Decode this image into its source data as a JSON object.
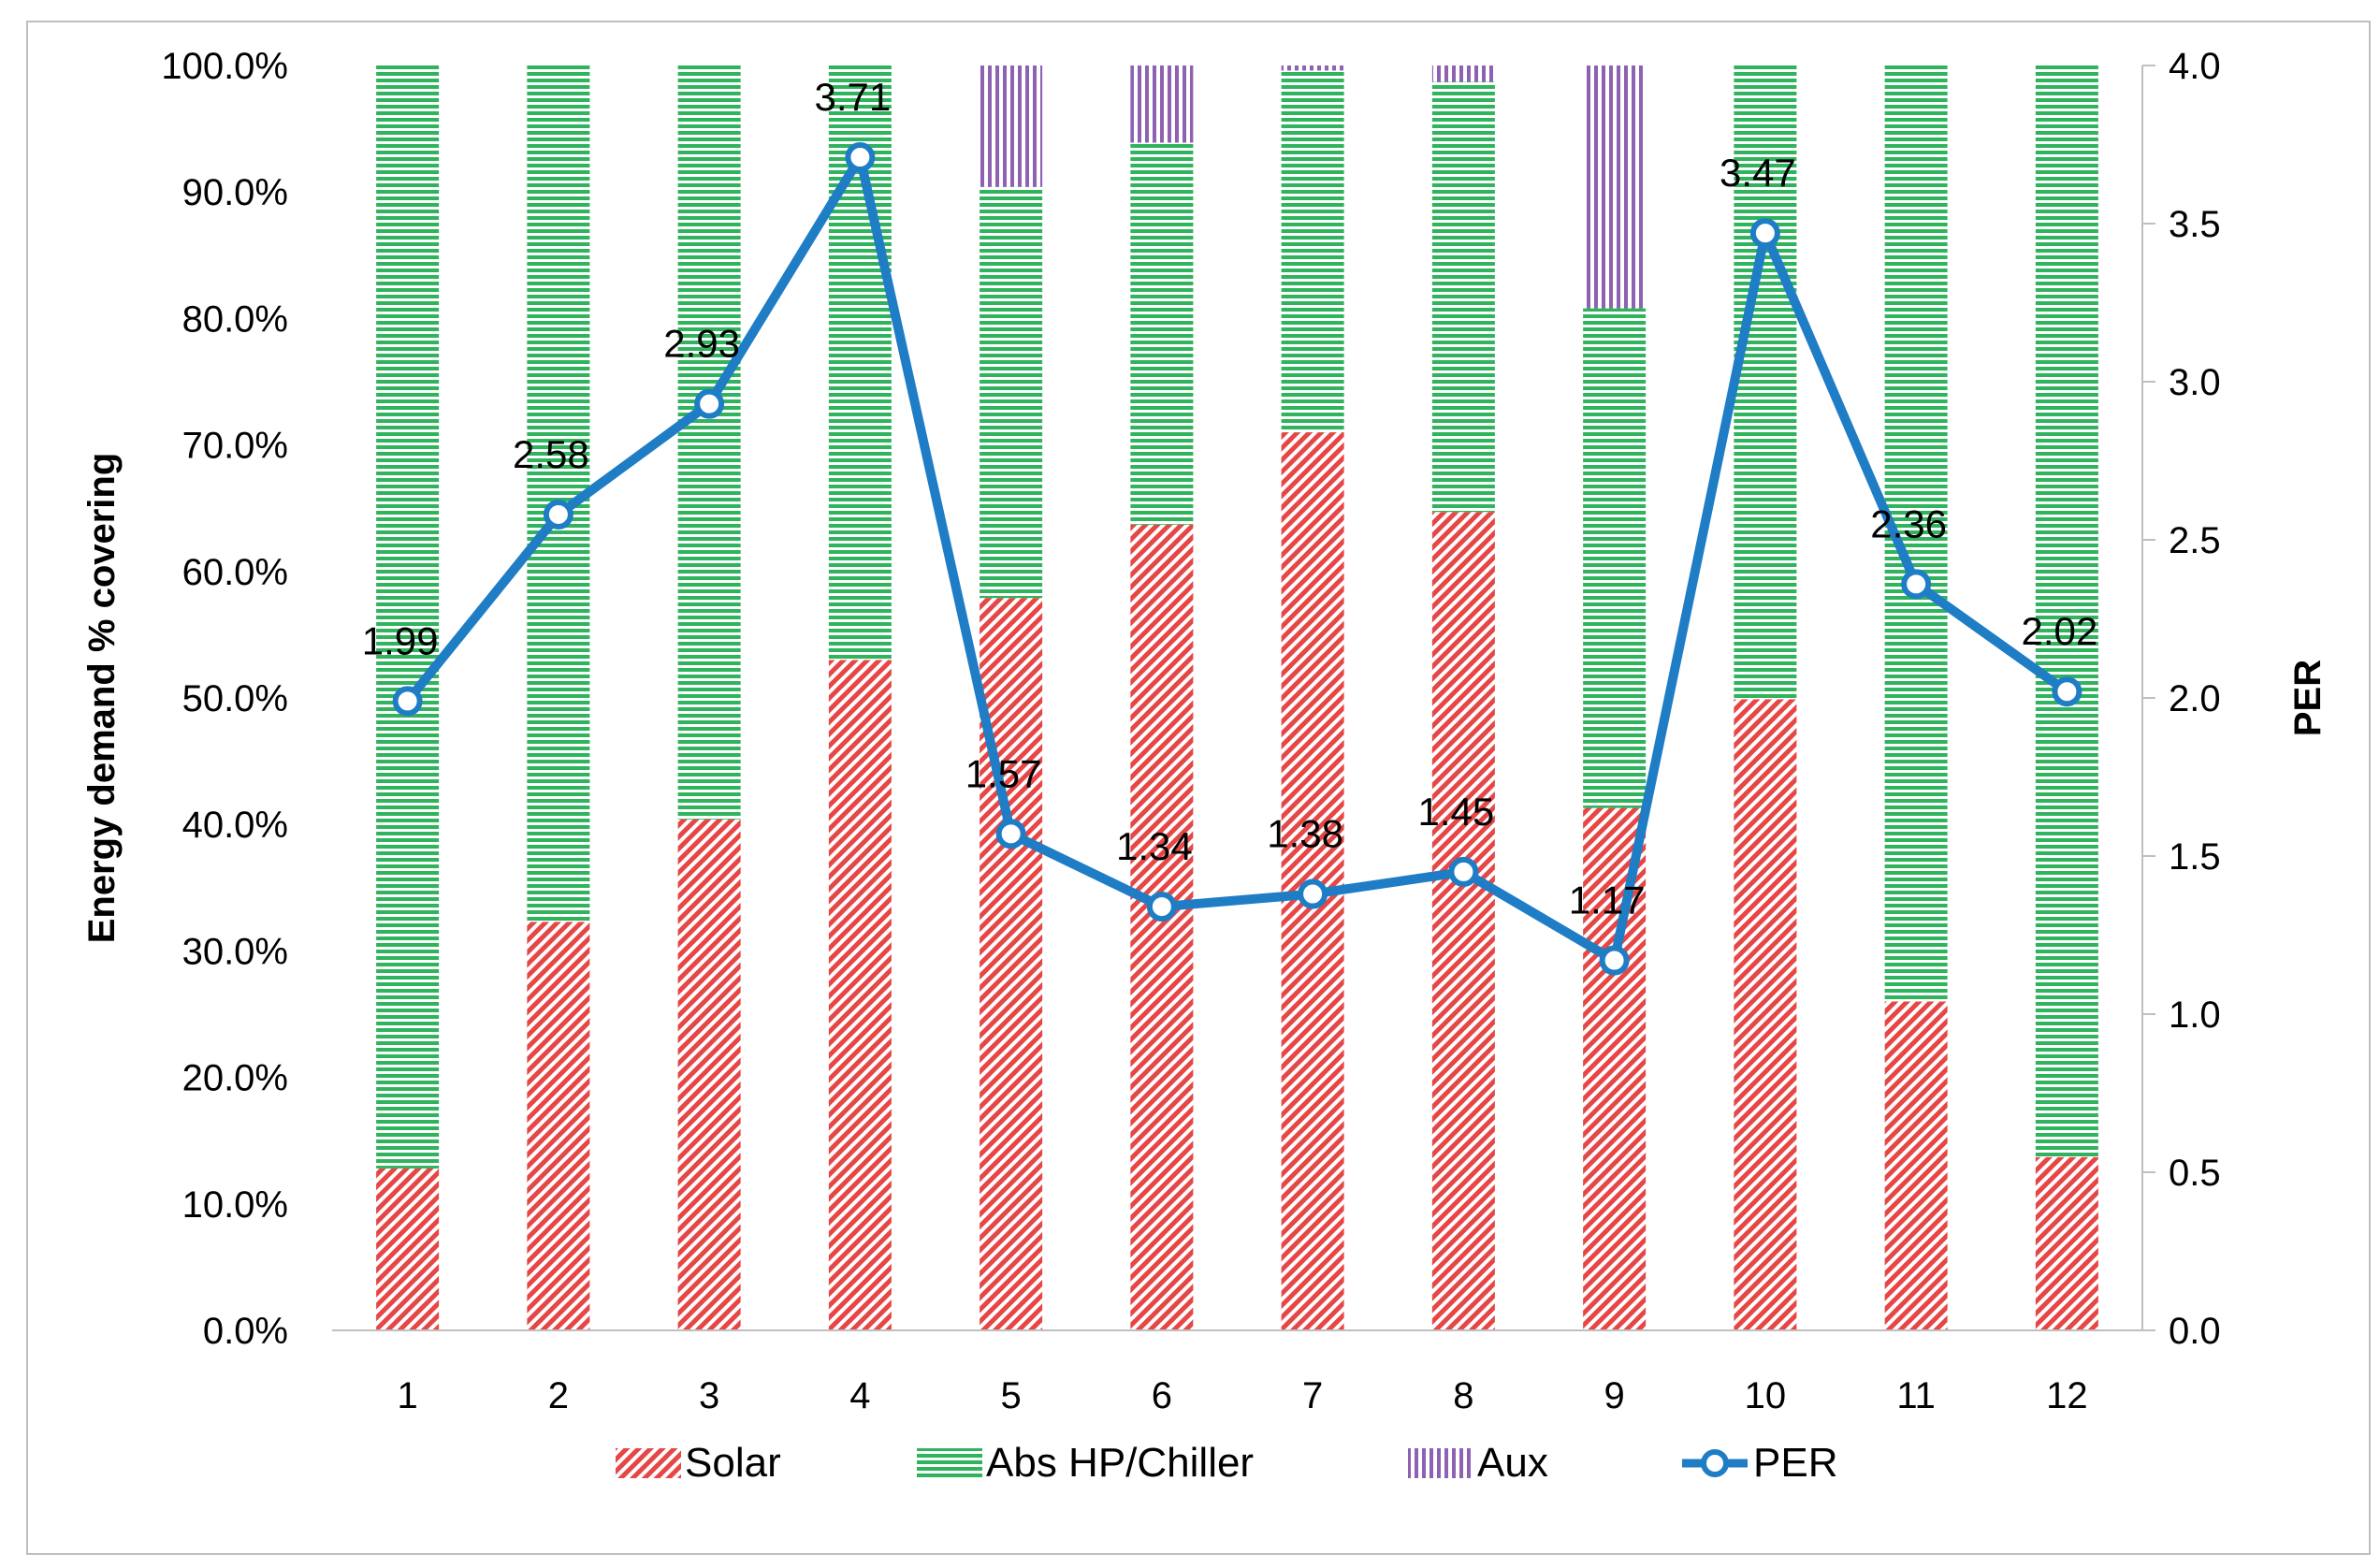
{
  "chart_data": {
    "type": "bar",
    "subtype": "stacked-bar-with-line-secondary-axis",
    "categories": [
      "1",
      "2",
      "3",
      "4",
      "5",
      "6",
      "7",
      "8",
      "9",
      "10",
      "11",
      "12"
    ],
    "series": [
      {
        "name": "Solar",
        "kind": "bar",
        "axis": "left",
        "color": "#e64646",
        "pattern": "diagonal-hatch",
        "values": [
          12.8,
          32.3,
          40.4,
          53.0,
          57.9,
          63.7,
          71.0,
          64.7,
          41.3,
          49.9,
          26.0,
          13.7
        ]
      },
      {
        "name": "Abs HP/Chiller",
        "kind": "bar",
        "axis": "left",
        "color": "#2fb35c",
        "pattern": "horizontal-lines",
        "values": [
          87.2,
          67.7,
          59.6,
          47.0,
          32.5,
          30.2,
          28.6,
          34.0,
          39.5,
          50.1,
          74.0,
          86.3
        ]
      },
      {
        "name": "Aux",
        "kind": "bar",
        "axis": "left",
        "color": "#8e62b3",
        "pattern": "vertical-lines",
        "values": [
          0,
          0,
          0,
          0,
          9.6,
          6.1,
          0.4,
          1.3,
          19.2,
          0,
          0,
          0
        ]
      },
      {
        "name": "PER",
        "kind": "line",
        "axis": "right",
        "color": "#1f7dc6",
        "marker": "circle",
        "values": [
          1.99,
          2.58,
          2.93,
          3.71,
          1.57,
          1.34,
          1.38,
          1.45,
          1.17,
          3.47,
          2.36,
          2.02
        ],
        "labels": [
          "1.99",
          "2.58",
          "2.93",
          "3.71",
          "1.57",
          "1.34",
          "1.38",
          "1.45",
          "1.17",
          "3.47",
          "2.36",
          "2.02"
        ]
      }
    ],
    "title": "",
    "xlabel": "",
    "ylabel": "Energy demand % covering",
    "y2label": "PER",
    "ylim": [
      0,
      100
    ],
    "y2lim": [
      0,
      4.0
    ],
    "yticks": [
      "0.0%",
      "10.0%",
      "20.0%",
      "30.0%",
      "40.0%",
      "50.0%",
      "60.0%",
      "70.0%",
      "80.0%",
      "90.0%",
      "100.0%"
    ],
    "y2ticks": [
      "0.0",
      "0.5",
      "1.0",
      "1.5",
      "2.0",
      "2.5",
      "3.0",
      "3.5",
      "4.0"
    ],
    "grid": false,
    "legend": {
      "position": "bottom",
      "entries": [
        "Solar",
        "Abs HP/Chiller",
        "Aux",
        "PER"
      ]
    }
  }
}
